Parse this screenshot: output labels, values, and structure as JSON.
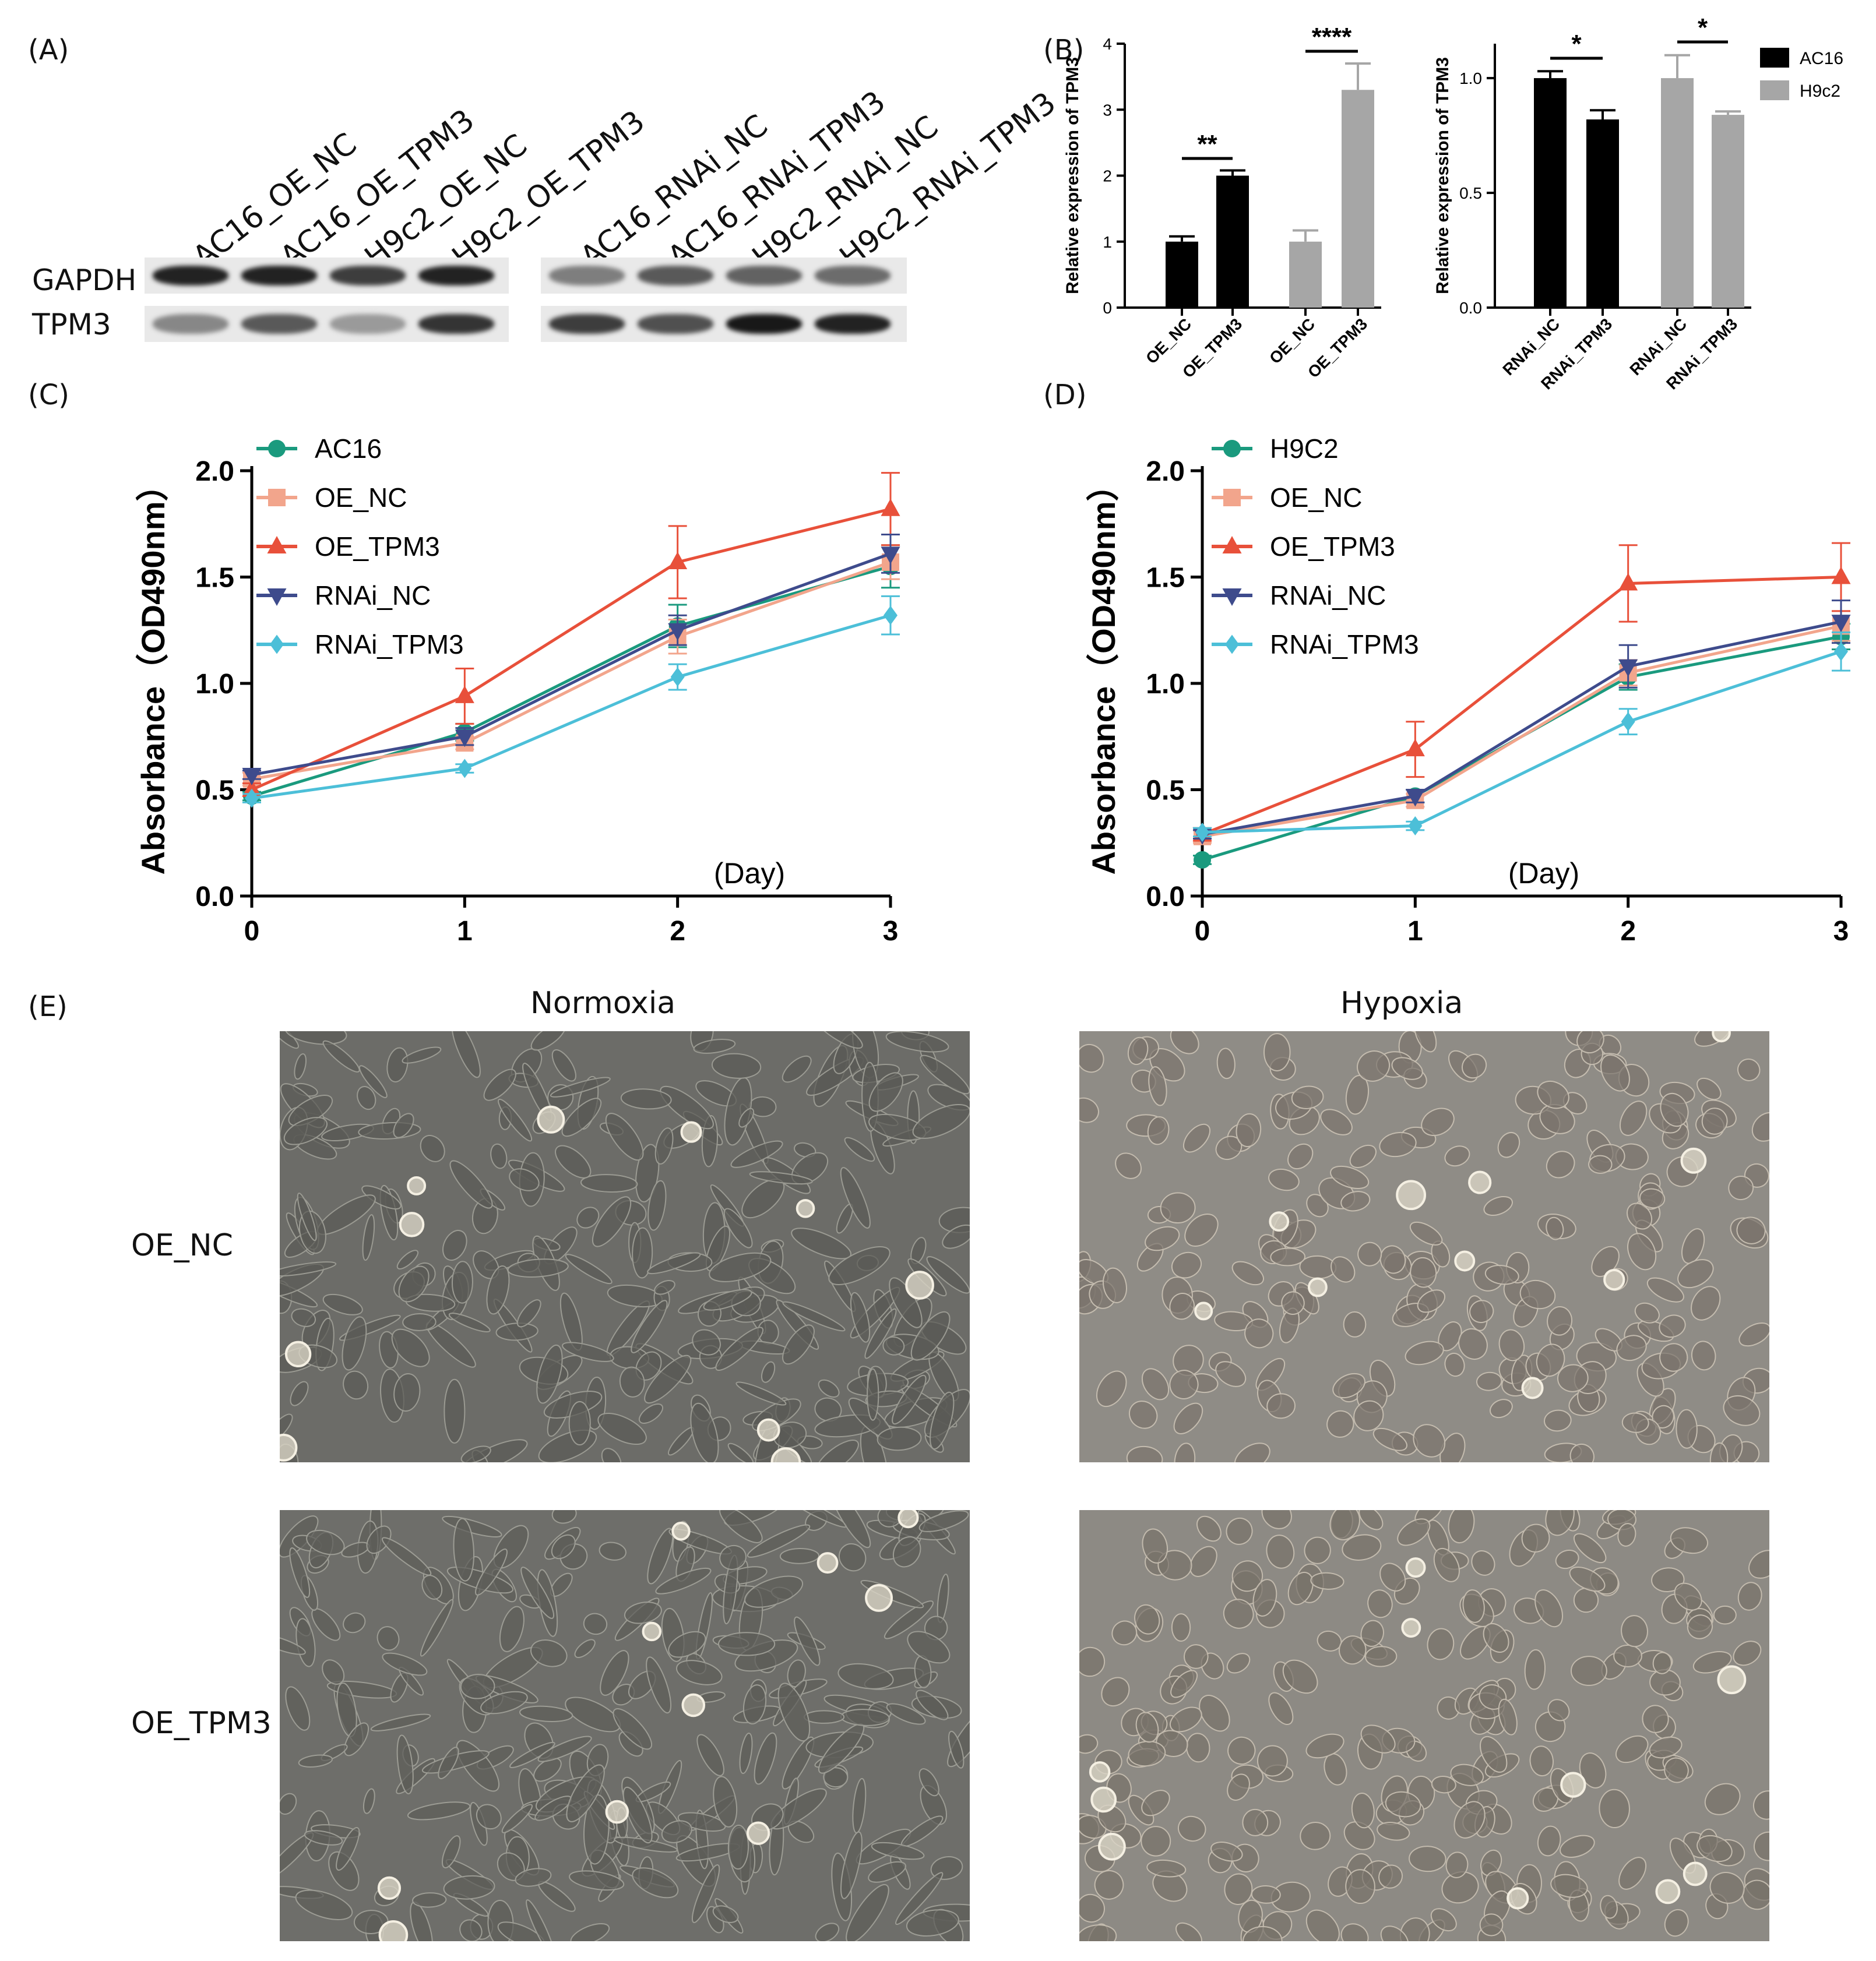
{
  "panels": {
    "A": "(A)",
    "B": "(B)",
    "C": "(C)",
    "D": "(D)",
    "E": "(E)"
  },
  "blot": {
    "markers": [
      "GAPDH",
      "TPM3"
    ],
    "lanes_left": [
      "AC16_OE_NC",
      "AC16_OE_TPM3",
      "H9c2_OE_NC",
      "H9c2_OE_TPM3"
    ],
    "lanes_right": [
      "AC16_RNAi_NC",
      "AC16_RNAi_TPM3",
      "H9c2_RNAi_NC",
      "H9c2_RNAi_TPM3"
    ],
    "gapdh_left_intensity": [
      0.9,
      0.9,
      0.75,
      0.9
    ],
    "tpm3_left_intensity": [
      0.35,
      0.6,
      0.25,
      0.8
    ],
    "gapdh_right_intensity": [
      0.4,
      0.6,
      0.55,
      0.5
    ],
    "tpm3_right_intensity": [
      0.75,
      0.65,
      0.95,
      0.9
    ]
  },
  "colors": {
    "AC16": "#000000",
    "H9c2": "#a6a6a6",
    "line_base": "#1a9a7e",
    "OE_NC": "#f2a58c",
    "OE_TPM3": "#e8503a",
    "RNAi_NC": "#3e4b8c",
    "RNAi_TPM3": "#4cbfd8"
  },
  "chart_data": [
    {
      "id": "B-left",
      "type": "bar",
      "ylabel": "Relative expression of TPM3",
      "ylim": [
        0,
        4
      ],
      "yticks": [
        "0",
        "1",
        "2",
        "3",
        "4"
      ],
      "categories": [
        "OE_NC",
        "OE_TPM3",
        "OE_NC",
        "OE_TPM3"
      ],
      "groups": [
        "AC16",
        "AC16",
        "H9c2",
        "H9c2"
      ],
      "values": [
        1.0,
        2.0,
        1.0,
        3.3
      ],
      "errors": [
        0.08,
        0.08,
        0.17,
        0.4
      ],
      "significance": [
        "**",
        "****"
      ]
    },
    {
      "id": "B-right",
      "type": "bar",
      "ylabel": "Relative expression of TPM3",
      "ylim": [
        0,
        1.15
      ],
      "yticks": [
        "0.0",
        "0.5",
        "1.0"
      ],
      "categories": [
        "RNAi_NC",
        "RNAi_TPM3",
        "RNAi_NC",
        "RNAi_TPM3"
      ],
      "groups": [
        "AC16",
        "AC16",
        "H9c2",
        "H9c2"
      ],
      "values": [
        1.0,
        0.82,
        1.0,
        0.84
      ],
      "errors": [
        0.03,
        0.04,
        0.1,
        0.015
      ],
      "significance": [
        "*",
        "*"
      ],
      "legend": [
        "AC16",
        "H9c2"
      ],
      "legend_position": "top-right"
    },
    {
      "id": "C",
      "type": "line",
      "ylabel": "Absorbance（OD490nm）",
      "xlabel": "(Day)",
      "x": [
        0,
        1,
        2,
        3
      ],
      "xticks": [
        "0",
        "1",
        "2",
        "3"
      ],
      "ylim": [
        0,
        2.0
      ],
      "yticks": [
        "0.0",
        "0.5",
        "1.0",
        "1.5",
        "2.0"
      ],
      "legend_position": "top-left",
      "series": [
        {
          "name": "AC16",
          "values": [
            0.47,
            0.77,
            1.27,
            1.55
          ],
          "errors": [
            0.02,
            0.04,
            0.1,
            0.1
          ],
          "marker": "circle"
        },
        {
          "name": "OE_NC",
          "values": [
            0.55,
            0.72,
            1.22,
            1.57
          ],
          "errors": [
            0.03,
            0.03,
            0.08,
            0.08
          ],
          "marker": "square"
        },
        {
          "name": "OE_TPM3",
          "values": [
            0.5,
            0.94,
            1.57,
            1.82
          ],
          "errors": [
            0.03,
            0.13,
            0.17,
            0.17
          ],
          "marker": "triangle-up"
        },
        {
          "name": "RNAi_NC",
          "values": [
            0.57,
            0.75,
            1.25,
            1.61
          ],
          "errors": [
            0.02,
            0.04,
            0.07,
            0.09
          ],
          "marker": "triangle-down"
        },
        {
          "name": "RNAi_TPM3",
          "values": [
            0.46,
            0.6,
            1.03,
            1.32
          ],
          "errors": [
            0.02,
            0.02,
            0.06,
            0.09
          ],
          "marker": "diamond"
        }
      ]
    },
    {
      "id": "D",
      "type": "line",
      "ylabel": "Absorbance（OD490nm）",
      "xlabel": "(Day)",
      "x": [
        0,
        1,
        2,
        3
      ],
      "xticks": [
        "0",
        "1",
        "2",
        "3"
      ],
      "ylim": [
        0,
        2.0
      ],
      "yticks": [
        "0.0",
        "0.5",
        "1.0",
        "1.5",
        "2.0"
      ],
      "legend_position": "top-left",
      "series": [
        {
          "name": "H9C2",
          "values": [
            0.17,
            0.47,
            1.03,
            1.22
          ],
          "errors": [
            0.02,
            0.03,
            0.06,
            0.06
          ],
          "marker": "circle"
        },
        {
          "name": "OE_NC",
          "values": [
            0.28,
            0.45,
            1.05,
            1.27
          ],
          "errors": [
            0.03,
            0.03,
            0.06,
            0.07
          ],
          "marker": "square"
        },
        {
          "name": "OE_TPM3",
          "values": [
            0.29,
            0.69,
            1.47,
            1.5
          ],
          "errors": [
            0.03,
            0.13,
            0.18,
            0.16
          ],
          "marker": "triangle-up"
        },
        {
          "name": "RNAi_NC",
          "values": [
            0.29,
            0.47,
            1.08,
            1.29
          ],
          "errors": [
            0.02,
            0.03,
            0.1,
            0.1
          ],
          "marker": "triangle-down"
        },
        {
          "name": "RNAi_TPM3",
          "values": [
            0.3,
            0.33,
            0.82,
            1.15
          ],
          "errors": [
            0.02,
            0.02,
            0.06,
            0.09
          ],
          "marker": "diamond"
        }
      ]
    }
  ],
  "micrographs": {
    "columns": [
      "Normoxia",
      "Hypoxia"
    ],
    "rows": [
      "OE_NC",
      "OE_TPM3"
    ]
  }
}
